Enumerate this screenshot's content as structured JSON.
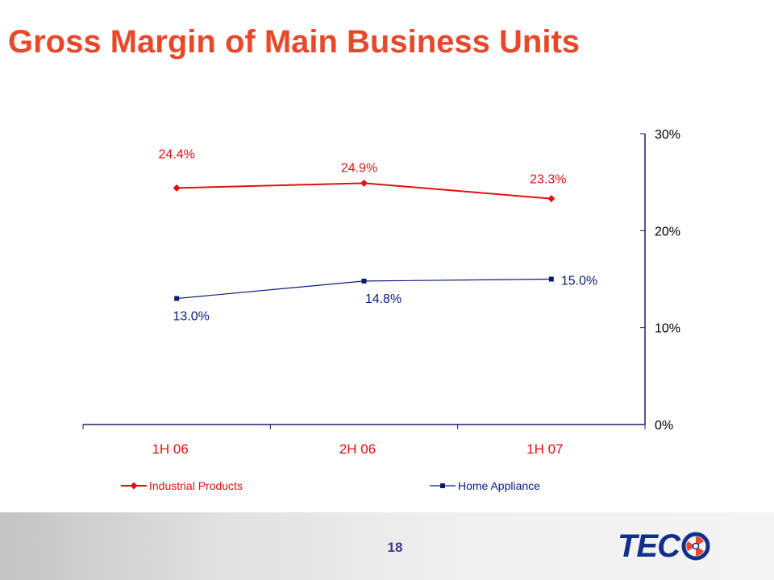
{
  "slide": {
    "title": "Gross Margin of Main Business Units",
    "page_number": "18",
    "logo_text": "TEC"
  },
  "colors": {
    "title": "#e8482a",
    "industrial": "#e01010",
    "home": "#0a1a7a",
    "axis": "#1a1a7a",
    "page_number": "#3a3a8c",
    "logo": "#12308a"
  },
  "chart_data": {
    "type": "line",
    "categories": [
      "1H 06",
      "2H 06",
      "1H 07"
    ],
    "series": [
      {
        "name": "Industrial Products",
        "values": [
          24.4,
          24.9,
          23.3
        ],
        "labels": [
          "24.4%",
          "24.9%",
          "23.3%"
        ],
        "marker": "diamond",
        "color": "#e01010"
      },
      {
        "name": "Home Appliance",
        "values": [
          13.0,
          14.8,
          15.0
        ],
        "labels": [
          "13.0%",
          "14.8%",
          "15.0%"
        ],
        "marker": "square",
        "color": "#0a1a7a"
      }
    ],
    "y_axis": {
      "side": "right",
      "ylim": [
        0,
        30
      ],
      "ticks": [
        0,
        10,
        20,
        30
      ],
      "tick_labels": [
        "0%",
        "10%",
        "20%",
        "30%"
      ]
    },
    "legend": {
      "position": "bottom",
      "entries": [
        "Industrial Products",
        "Home Appliance"
      ]
    },
    "grid": false,
    "title": "",
    "xlabel": "",
    "ylabel": ""
  }
}
